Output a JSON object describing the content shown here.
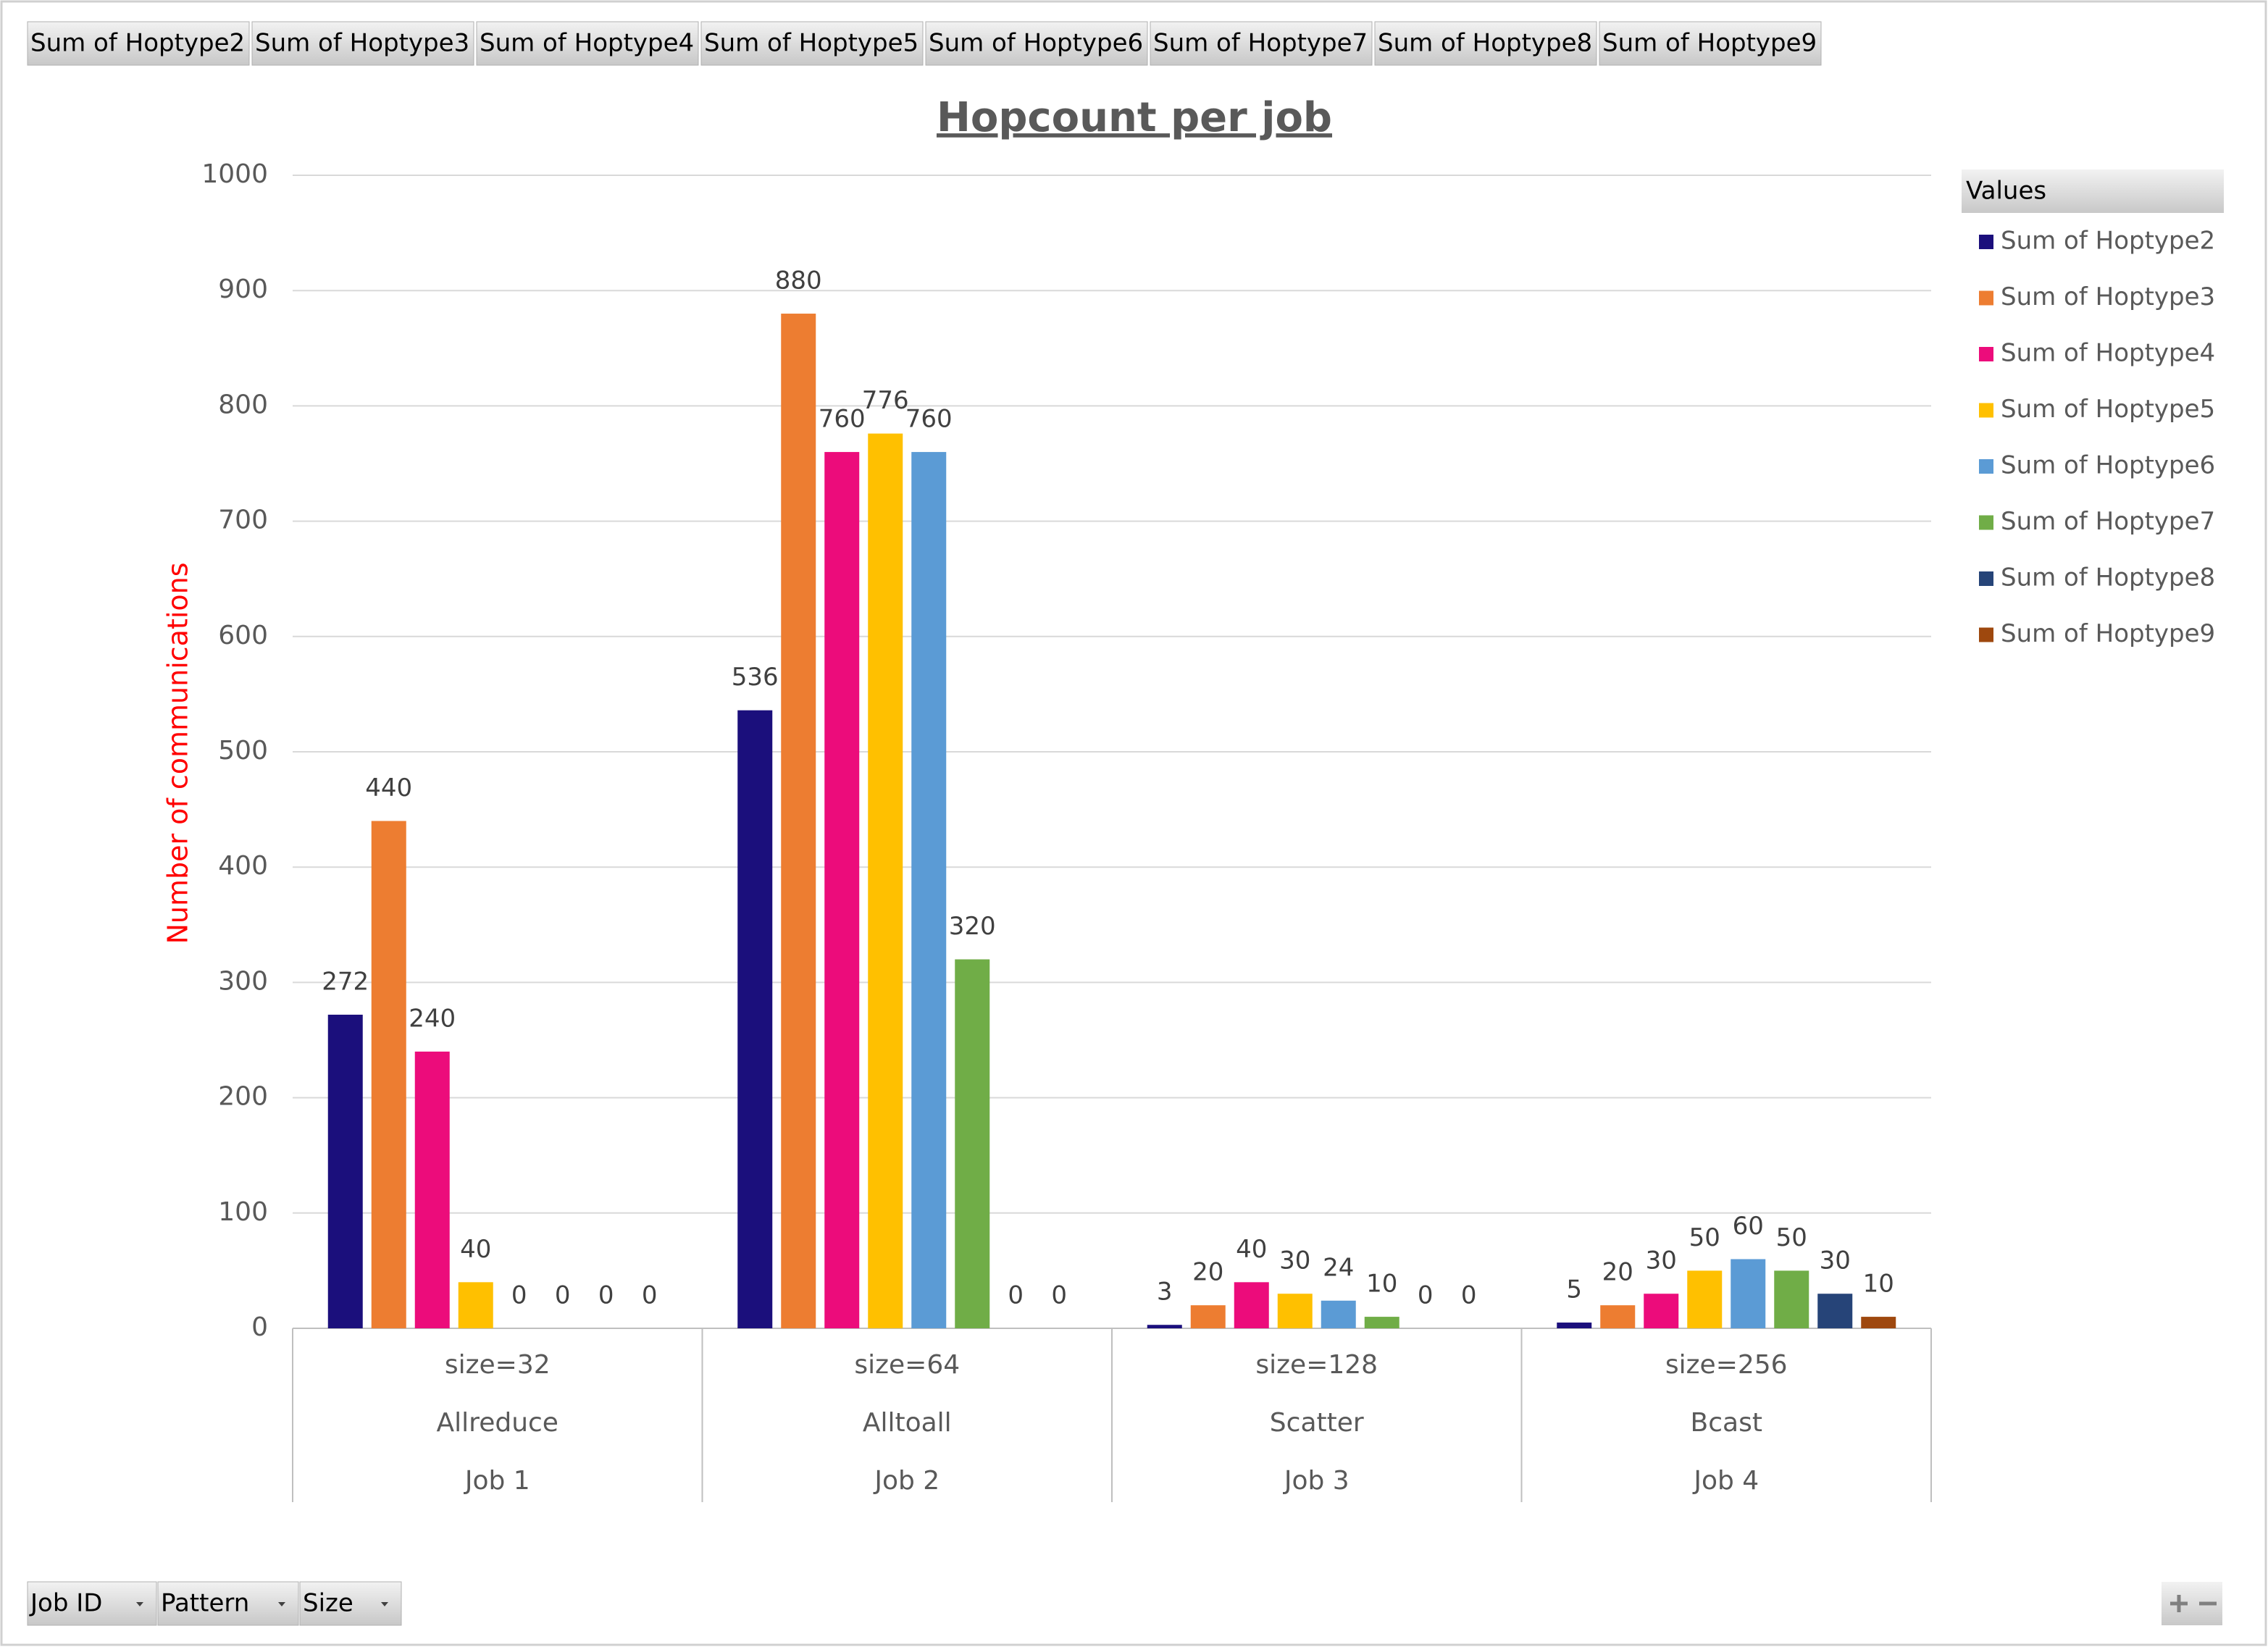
{
  "chart_data": {
    "type": "bar",
    "title": "Hopcount per job",
    "y_label": "Number of communications",
    "legend_title": "Values",
    "legend": "right",
    "grid": true,
    "row_fields": [
      "Job ID",
      "Pattern",
      "Size"
    ],
    "categories": [
      "Job 1",
      "Job 2",
      "Job 3",
      "Job 4"
    ],
    "patterns": [
      "Allreduce",
      "Alltoall",
      "Scatter",
      "Bcast"
    ],
    "sizes": [
      "size=32",
      "size=64",
      "size=128",
      "size=256"
    ],
    "ylim": [
      0,
      1000
    ],
    "yticks": [
      0,
      100,
      200,
      300,
      400,
      500,
      600,
      700,
      800,
      900,
      1000
    ],
    "series": [
      {
        "name": "Sum of Hoptype2",
        "color": "#1b0f7c",
        "values": [
          272,
          536,
          3,
          5
        ]
      },
      {
        "name": "Sum of Hoptype3",
        "color": "#ed7d31",
        "values": [
          440,
          880,
          20,
          20
        ]
      },
      {
        "name": "Sum of Hoptype4",
        "color": "#ec0c7b",
        "values": [
          240,
          760,
          40,
          30
        ]
      },
      {
        "name": "Sum of Hoptype5",
        "color": "#ffc000",
        "values": [
          40,
          776,
          30,
          50
        ]
      },
      {
        "name": "Sum of Hoptype6",
        "color": "#5b9bd5",
        "values": [
          0,
          760,
          24,
          60
        ]
      },
      {
        "name": "Sum of Hoptype7",
        "color": "#70ad47",
        "values": [
          0,
          320,
          10,
          50
        ]
      },
      {
        "name": "Sum of Hoptype8",
        "color": "#264478",
        "values": [
          0,
          0,
          0,
          30
        ]
      },
      {
        "name": "Sum of Hoptype9",
        "color": "#9e480e",
        "values": [
          0,
          0,
          0,
          10
        ]
      }
    ]
  }
}
